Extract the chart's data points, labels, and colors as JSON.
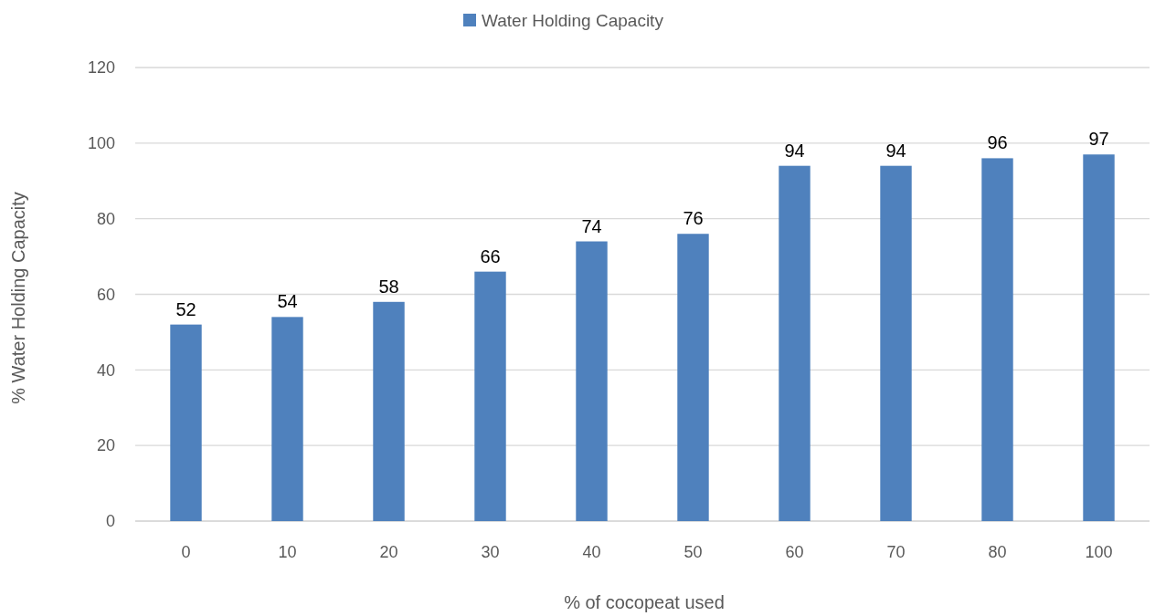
{
  "chart_data": {
    "type": "bar",
    "xlabel": "% of cocopeat used",
    "ylabel": "% Water Holding Capacity",
    "categories": [
      "0",
      "10",
      "20",
      "30",
      "40",
      "50",
      "60",
      "70",
      "80",
      "100"
    ],
    "series": [
      {
        "name": "Water Holding Capacity",
        "color": "#4f81bd",
        "values": [
          52,
          54,
          58,
          66,
          74,
          76,
          94,
          94,
          96,
          97
        ]
      }
    ],
    "ylim": [
      0,
      120
    ],
    "yticks": [
      0,
      20,
      40,
      60,
      80,
      100,
      120
    ],
    "grid": "y",
    "legend": "top",
    "data_labels": true
  }
}
